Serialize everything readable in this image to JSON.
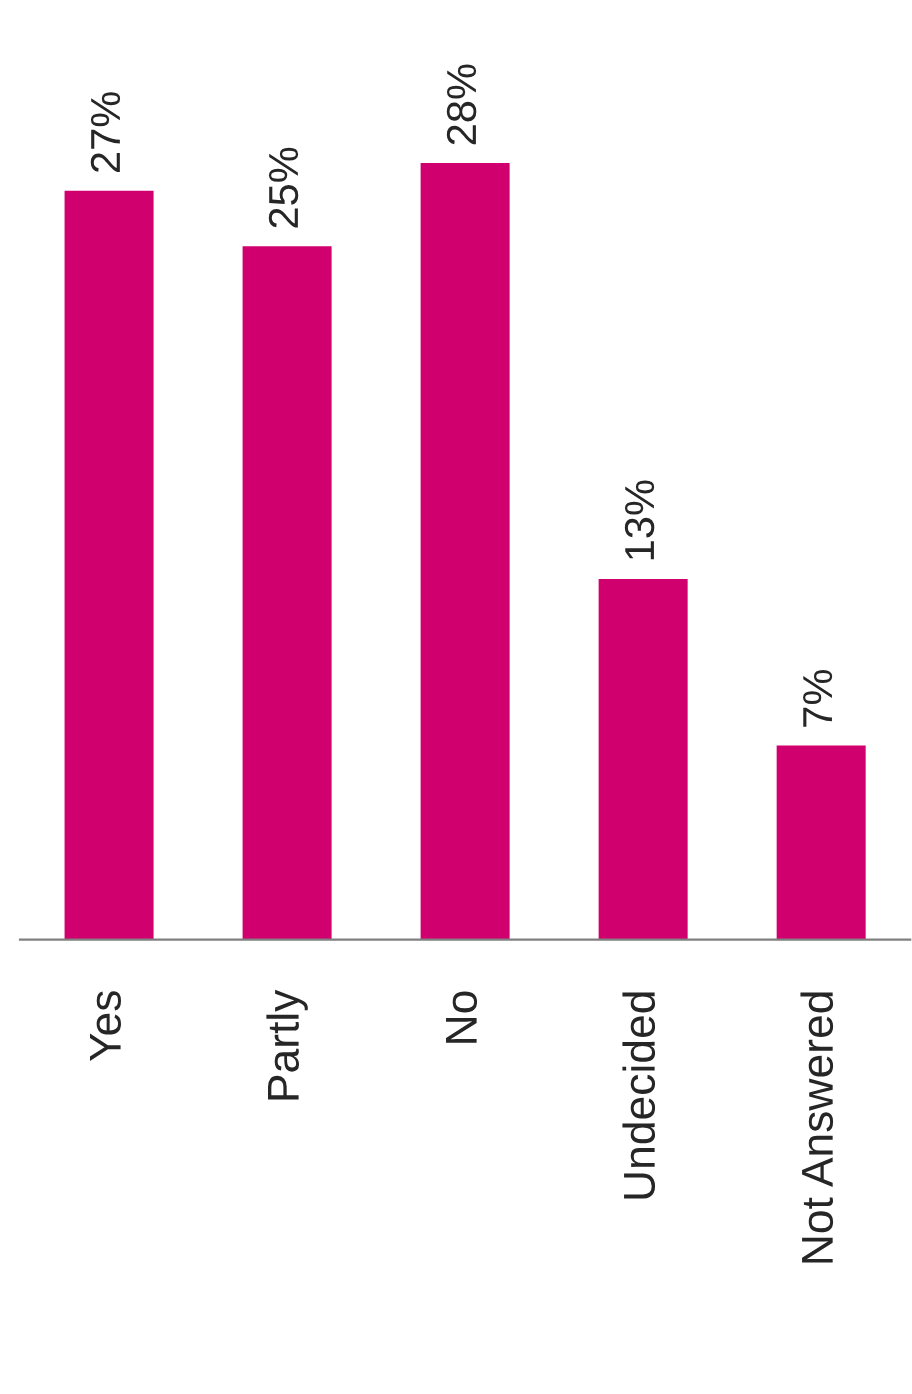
{
  "chart_data": {
    "type": "bar",
    "categories": [
      "Yes",
      "Partly",
      "No",
      "Undecided",
      "Not Answered"
    ],
    "values": [
      27,
      25,
      28,
      13,
      7
    ],
    "value_labels": [
      "27%",
      "25%",
      "28%",
      "13%",
      "7%"
    ],
    "color": "#d0006f",
    "grid": false,
    "legend": false
  }
}
